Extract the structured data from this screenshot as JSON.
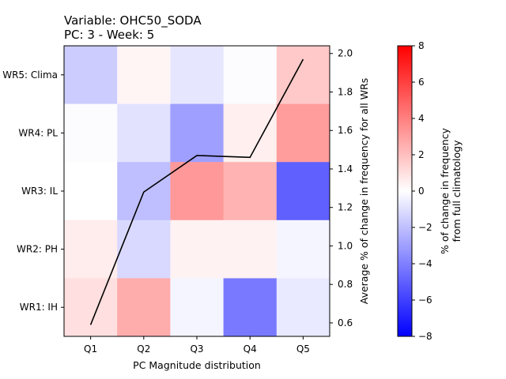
{
  "chart_data": {
    "type": "heatmap",
    "title_line1": "Variable: OHC50_SODA",
    "title_line2": "PC: 3 - Week: 5",
    "xlabel": "PC Magnitude distribution",
    "ylabel_right": "Average % of change in frequency for all WRs",
    "colorbar_label_line1": "% of change in frequency",
    "colorbar_label_line2": "from full climatology",
    "x_categories": [
      "Q1",
      "Q2",
      "Q3",
      "Q4",
      "Q5"
    ],
    "y_categories": [
      "WR5: Clima",
      "WR4: PL",
      "WR3: IL",
      "WR2: PH",
      "WR1: IH"
    ],
    "heatmap_values": [
      [
        -1.6,
        0.3,
        -0.8,
        -0.1,
        1.7
      ],
      [
        -0.1,
        -0.9,
        -3.0,
        0.5,
        3.1
      ],
      [
        0.0,
        -2.0,
        3.2,
        2.4,
        -5.0
      ],
      [
        0.6,
        -1.2,
        0.4,
        0.4,
        -0.3
      ],
      [
        1.0,
        2.6,
        -0.3,
        -4.2,
        -0.7
      ]
    ],
    "color_range": [
      -8,
      8
    ],
    "colormap": "bwr",
    "colorbar_ticks": [
      "8",
      "6",
      "4",
      "2",
      "0",
      "−2",
      "−4",
      "−6",
      "−8"
    ],
    "line_series": {
      "x": [
        "Q1",
        "Q2",
        "Q3",
        "Q4",
        "Q5"
      ],
      "values": [
        0.59,
        1.28,
        1.47,
        1.46,
        1.97
      ],
      "color": "#000000"
    },
    "right_axis_ylim": [
      0.53,
      2.04
    ],
    "right_axis_ticks": [
      "0.6",
      "0.8",
      "1.0",
      "1.2",
      "1.4",
      "1.6",
      "1.8",
      "2.0"
    ],
    "grid": false
  }
}
